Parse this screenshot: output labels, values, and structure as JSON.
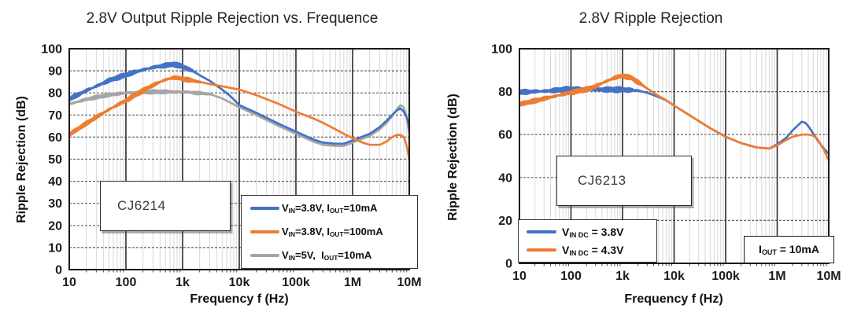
{
  "figure": {
    "background": "#ffffff"
  },
  "charts": [
    {
      "title": "2.8V Output Ripple Rejection vs. Frequence",
      "x_label": "Frequency f (Hz)",
      "y_label": "Ripple Rejection (dB)",
      "part_label": "CJ6214",
      "legend": {
        "items": [
          {
            "parts": [
              {
                "t": "V"
              },
              {
                "s": "IN"
              },
              {
                "t": "=3.8V, I"
              },
              {
                "s": "OUT"
              },
              {
                "t": "=10mA"
              }
            ]
          },
          {
            "parts": [
              {
                "t": "V"
              },
              {
                "s": "IN"
              },
              {
                "t": "=3.8V, I"
              },
              {
                "s": "OUT"
              },
              {
                "t": "=100mA"
              }
            ]
          },
          {
            "parts": [
              {
                "t": "V"
              },
              {
                "s": "IN"
              },
              {
                "t": "=5V,  I"
              },
              {
                "s": "OUT"
              },
              {
                "t": "=10mA"
              }
            ]
          }
        ]
      }
    },
    {
      "title": "2.8V Ripple Rejection",
      "x_label": "Frequency f (Hz)",
      "y_label": "Ripple Rejection (dB)",
      "part_label": "CJ6213",
      "legend": {
        "items": [
          {
            "parts": [
              {
                "t": "V"
              },
              {
                "s": "IN DC"
              },
              {
                "t": " = 3.8V"
              }
            ]
          },
          {
            "parts": [
              {
                "t": "V"
              },
              {
                "s": "IN DC"
              },
              {
                "t": " = 4.3V"
              }
            ]
          }
        ]
      },
      "annotation": {
        "parts": [
          {
            "t": "I"
          },
          {
            "s": "OUT"
          },
          {
            "t": " = 10mA"
          }
        ]
      }
    }
  ],
  "chart_data": [
    {
      "type": "line",
      "title": "2.8V Output Ripple Rejection vs. Frequence",
      "xlabel": "Frequency f (Hz)",
      "ylabel": "Ripple Rejection (dB)",
      "x_scale": "log",
      "x_range": [
        10,
        10000000
      ],
      "x_ticklabels": [
        "10",
        "100",
        "1k",
        "10k",
        "100k",
        "1M",
        "10M"
      ],
      "ylim": [
        0,
        100
      ],
      "y_step": 10,
      "grid": true,
      "legend_position": "bottom-right",
      "series": [
        {
          "name": "VIN=3.8V, IOUT=10mA",
          "color": "#4472C4",
          "z": 1,
          "noisy_until": 2000,
          "noise_amp": 1.2,
          "points": [
            [
              10,
              77
            ],
            [
              20,
              81
            ],
            [
              50,
              85.5
            ],
            [
              100,
              88
            ],
            [
              200,
              90.5
            ],
            [
              300,
              91.5
            ],
            [
              500,
              92.5
            ],
            [
              700,
              93
            ],
            [
              1000,
              92
            ],
            [
              1500,
              90
            ],
            [
              2000,
              88
            ],
            [
              3000,
              85.5
            ],
            [
              5000,
              81.5
            ],
            [
              7000,
              78.5
            ],
            [
              10000,
              74.5
            ],
            [
              20000,
              71
            ],
            [
              50000,
              66
            ],
            [
              100000,
              62.5
            ],
            [
              200000,
              59
            ],
            [
              300000,
              57.5
            ],
            [
              500000,
              57
            ],
            [
              700000,
              57
            ],
            [
              1000000,
              58.5
            ],
            [
              2000000,
              61.5
            ],
            [
              3000000,
              64.5
            ],
            [
              4000000,
              67.5
            ],
            [
              5000000,
              70
            ],
            [
              6000000,
              72
            ],
            [
              7000000,
              73
            ],
            [
              8000000,
              71.5
            ],
            [
              9000000,
              69
            ],
            [
              10000000,
              65
            ]
          ]
        },
        {
          "name": "VIN=3.8V, IOUT=100mA",
          "color": "#ED7D31",
          "z": 2,
          "noisy_until": 2000,
          "noise_amp": 1.1,
          "points": [
            [
              10,
              61
            ],
            [
              20,
              66
            ],
            [
              50,
              72.5
            ],
            [
              100,
              76.5
            ],
            [
              200,
              81
            ],
            [
              300,
              83.5
            ],
            [
              500,
              86
            ],
            [
              700,
              87
            ],
            [
              1000,
              86.5
            ],
            [
              2000,
              85
            ],
            [
              3000,
              84
            ],
            [
              5000,
              83
            ],
            [
              10000,
              81.5
            ],
            [
              20000,
              79
            ],
            [
              50000,
              75
            ],
            [
              100000,
              71.5
            ],
            [
              200000,
              68.5
            ],
            [
              300000,
              66.5
            ],
            [
              500000,
              63.5
            ],
            [
              700000,
              61.5
            ],
            [
              1000000,
              59.5
            ],
            [
              1500000,
              57.5
            ],
            [
              2000000,
              56.5
            ],
            [
              3000000,
              56.5
            ],
            [
              4000000,
              58
            ],
            [
              5000000,
              60
            ],
            [
              6000000,
              61
            ],
            [
              7000000,
              61
            ],
            [
              8000000,
              60
            ],
            [
              9000000,
              56
            ],
            [
              10000000,
              50.5
            ]
          ]
        },
        {
          "name": "VIN=5V, IOUT=10mA",
          "color": "#A5A5A5",
          "z": 0,
          "noisy_until": 3000,
          "noise_amp": 0.9,
          "points": [
            [
              10,
              75
            ],
            [
              20,
              77
            ],
            [
              50,
              79
            ],
            [
              100,
              80
            ],
            [
              300,
              80.5
            ],
            [
              1000,
              80.5
            ],
            [
              2000,
              80
            ],
            [
              3000,
              79.5
            ],
            [
              5000,
              77.5
            ],
            [
              10000,
              73.5
            ],
            [
              20000,
              70
            ],
            [
              50000,
              65
            ],
            [
              100000,
              61.5
            ],
            [
              200000,
              58
            ],
            [
              300000,
              56.5
            ],
            [
              500000,
              56
            ],
            [
              700000,
              56
            ],
            [
              1000000,
              57.5
            ],
            [
              2000000,
              60.5
            ],
            [
              3000000,
              63.5
            ],
            [
              4000000,
              66.5
            ],
            [
              5000000,
              69.5
            ],
            [
              6000000,
              72.5
            ],
            [
              7000000,
              74.5
            ],
            [
              8000000,
              73.5
            ],
            [
              9000000,
              69
            ],
            [
              10000000,
              62
            ]
          ]
        }
      ]
    },
    {
      "type": "line",
      "title": "2.8V Ripple Rejection",
      "xlabel": "Frequency f (Hz)",
      "ylabel": "Ripple Rejection (dB)",
      "x_scale": "log",
      "x_range": [
        10,
        10000000
      ],
      "x_ticklabels": [
        "10",
        "100",
        "1k",
        "10k",
        "100k",
        "1M",
        "10M"
      ],
      "ylim": [
        0,
        100
      ],
      "y_step": 20,
      "grid": true,
      "legend_position": "bottom-left",
      "series": [
        {
          "name": "VIN DC = 3.8V",
          "color": "#4472C4",
          "z": 0,
          "noisy_until": 2500,
          "noise_amp": 1.4,
          "points": [
            [
              10,
              79.5
            ],
            [
              20,
              80
            ],
            [
              50,
              80.5
            ],
            [
              100,
              81
            ],
            [
              300,
              81
            ],
            [
              700,
              81
            ],
            [
              1000,
              81
            ],
            [
              2000,
              80.5
            ],
            [
              3000,
              79.5
            ],
            [
              5000,
              77.5
            ],
            [
              7000,
              76
            ],
            [
              10000,
              73.5
            ],
            [
              20000,
              69
            ],
            [
              50000,
              63
            ],
            [
              100000,
              59
            ],
            [
              200000,
              56
            ],
            [
              400000,
              54
            ],
            [
              700000,
              53.5
            ],
            [
              1000000,
              55.5
            ],
            [
              1500000,
              58.5
            ],
            [
              2000000,
              62
            ],
            [
              3000000,
              66
            ],
            [
              3500000,
              65.5
            ],
            [
              4000000,
              64
            ],
            [
              5000000,
              60.5
            ],
            [
              6000000,
              57.5
            ],
            [
              8000000,
              53.5
            ],
            [
              10000000,
              51
            ]
          ]
        },
        {
          "name": "VIN DC = 4.3V",
          "color": "#ED7D31",
          "z": 1,
          "noisy_until": 3000,
          "noise_amp": 1.2,
          "points": [
            [
              10,
              74
            ],
            [
              20,
              75.5
            ],
            [
              50,
              78
            ],
            [
              100,
              79.5
            ],
            [
              200,
              81
            ],
            [
              300,
              82.5
            ],
            [
              500,
              85
            ],
            [
              700,
              86.5
            ],
            [
              1000,
              87.5
            ],
            [
              1500,
              86.5
            ],
            [
              2000,
              84.5
            ],
            [
              3000,
              81.5
            ],
            [
              5000,
              78
            ],
            [
              7000,
              76
            ],
            [
              10000,
              73.5
            ],
            [
              20000,
              69
            ],
            [
              50000,
              63
            ],
            [
              100000,
              59
            ],
            [
              200000,
              56
            ],
            [
              400000,
              54
            ],
            [
              700000,
              53.5
            ],
            [
              1000000,
              55
            ],
            [
              1500000,
              57.5
            ],
            [
              2000000,
              59
            ],
            [
              3000000,
              60
            ],
            [
              4000000,
              60
            ],
            [
              5000000,
              59.5
            ],
            [
              6000000,
              58
            ],
            [
              8000000,
              53
            ],
            [
              10000000,
              48
            ]
          ]
        }
      ]
    }
  ]
}
